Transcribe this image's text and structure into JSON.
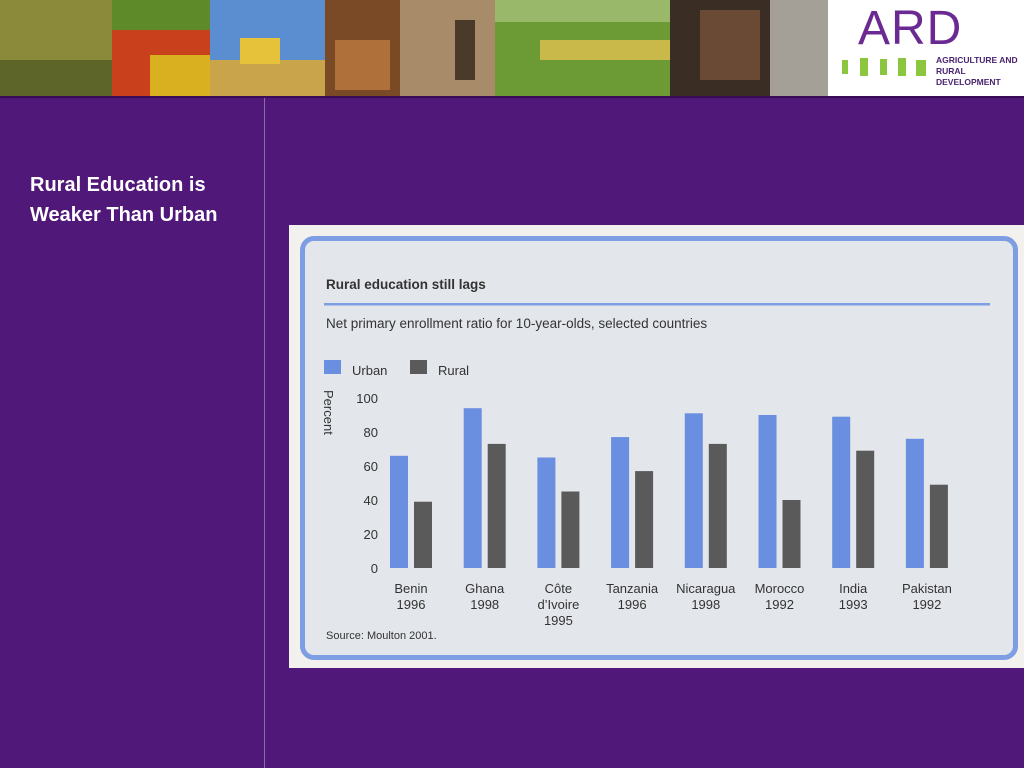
{
  "slide": {
    "title": "Rural Education is Weaker Than Urban"
  },
  "logo": {
    "brand": "ARD",
    "tagline": "AGRICULTURE AND RURAL DEVELOPMENT",
    "brand_color": "#6a2a92",
    "accent_color": "#8cc63f"
  },
  "banner": {
    "photos": [
      "grain-stalks",
      "vegetable-market",
      "combine-harvester",
      "nut-basket",
      "farmer-with-donkey",
      "green-fields",
      "farmer-hands"
    ]
  },
  "colors": {
    "background": "#501878",
    "urban": "#6a8ee0",
    "rural": "#5a5a5a",
    "frame": "#7d9ee2"
  },
  "chart_data": {
    "type": "bar",
    "title": "Rural education still lags",
    "subtitle": "Net primary enrollment ratio for 10-year-olds, selected countries",
    "ylabel": "Percent",
    "xlabel": "",
    "ylim": [
      0,
      100
    ],
    "yticks": [
      0,
      20,
      40,
      60,
      80,
      100
    ],
    "legend_position": "top-left",
    "grid": false,
    "categories": [
      [
        "Benin",
        "1996"
      ],
      [
        "Ghana",
        "1998"
      ],
      [
        "Côte",
        "d’Ivoire",
        "1995"
      ],
      [
        "Tanzania",
        "1996"
      ],
      [
        "Nicaragua",
        "1998"
      ],
      [
        "Morocco",
        "1992"
      ],
      [
        "India",
        "1993"
      ],
      [
        "Pakistan",
        "1992"
      ]
    ],
    "series": [
      {
        "name": "Urban",
        "color": "#6a8ee0",
        "values": [
          66,
          94,
          65,
          77,
          91,
          90,
          89,
          76
        ]
      },
      {
        "name": "Rural",
        "color": "#5a5a5a",
        "values": [
          39,
          73,
          45,
          57,
          73,
          40,
          69,
          49
        ]
      }
    ],
    "source": "Source: Moulton 2001."
  }
}
